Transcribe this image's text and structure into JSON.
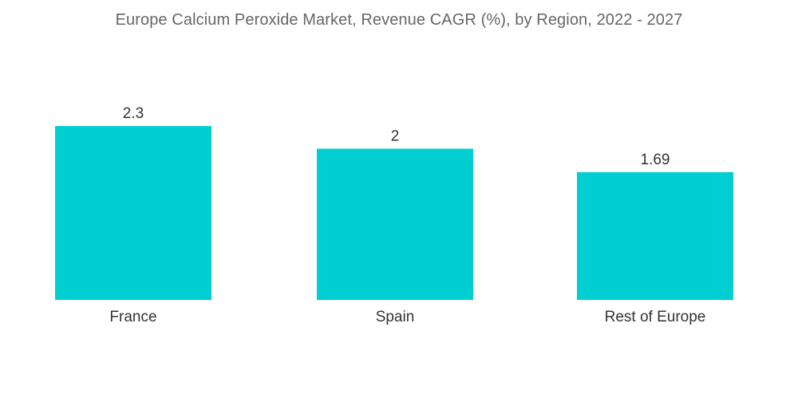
{
  "chart_data": {
    "type": "bar",
    "title": "Europe Calcium Peroxide Market, Revenue CAGR (%), by Region, 2022 - 2027",
    "categories": [
      "France",
      "Spain",
      "Rest of Europe"
    ],
    "values": [
      2.3,
      2,
      1.69
    ],
    "value_labels": [
      "2.3",
      "2",
      "1.69"
    ],
    "xlabel": "",
    "ylabel": "",
    "ylim": [
      0,
      2.3
    ],
    "grid": false,
    "legend": "none",
    "bar_color": "#00CED1"
  }
}
